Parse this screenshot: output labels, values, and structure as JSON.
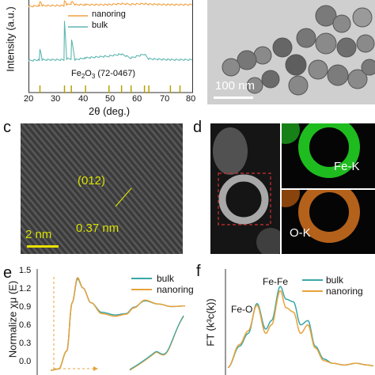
{
  "figure": {
    "panel_a": {
      "ylabel": "Intensity (a.u.)",
      "xlabel": "2θ (deg.)",
      "xticks": [
        "20",
        "30",
        "40",
        "50",
        "60",
        "70",
        "80"
      ],
      "legend": [
        "nanoring",
        "bulk"
      ],
      "reference": "Fe",
      "reference_sub": "2",
      "reference_O": "O",
      "reference_sub2": "3",
      "reference_code": "(72-0467)",
      "colors": {
        "nanoring": "#f0a040",
        "bulk": "#5db6b0",
        "reference": "#b8a000"
      }
    },
    "panel_b": {
      "scalebar": "100 nm"
    },
    "panel_c": {
      "letter": "c",
      "plane": "(012)",
      "spacing": "0.37 nm",
      "scalebar": "2 nm"
    },
    "panel_d": {
      "letter": "d",
      "map1": "Fe-K",
      "map2": "O-K"
    },
    "panel_e": {
      "letter": "e",
      "ylabel": "Normalize χμ (E)",
      "yticks": [
        "1.5",
        "1.2",
        "0.9",
        "0.6",
        "0.3",
        "0.0"
      ],
      "legend": [
        "bulk",
        "nanoring"
      ],
      "colors": {
        "bulk": "#3aa7a7",
        "nanoring": "#e8a23a"
      }
    },
    "panel_f": {
      "letter": "f",
      "ylabel": "FT (k³c(k))",
      "legend": [
        "bulk",
        "nanoring"
      ],
      "peak1": "Fe-O",
      "peak2": "Fe-Fe",
      "colors": {
        "bulk": "#3aa7a7",
        "nanoring": "#e8a23a"
      }
    }
  },
  "chart_data": [
    {
      "type": "line",
      "panel": "a",
      "xlabel": "2θ (deg.)",
      "ylabel": "Intensity (a.u.)",
      "xlim": [
        20,
        80
      ],
      "series": [
        {
          "name": "nanoring",
          "x": [
            20,
            24,
            24.2,
            25,
            33,
            33.2,
            34,
            35.6,
            35.8,
            37,
            41,
            49,
            54,
            57.6,
            62.5,
            64,
            72,
            80
          ],
          "y": [
            0.93,
            0.94,
            0.99,
            0.94,
            0.94,
            1.0,
            0.95,
            0.96,
            0.985,
            0.95,
            0.95,
            0.95,
            0.96,
            0.955,
            0.96,
            0.955,
            0.95,
            0.95
          ]
        },
        {
          "name": "bulk",
          "x": [
            20,
            24,
            24.2,
            25,
            33,
            33.2,
            34,
            35.6,
            35.8,
            37,
            41,
            49.5,
            54,
            57.6,
            62.5,
            64,
            72,
            80
          ],
          "y": [
            0.35,
            0.36,
            0.48,
            0.36,
            0.36,
            0.78,
            0.37,
            0.37,
            0.58,
            0.36,
            0.38,
            0.4,
            0.42,
            0.38,
            0.42,
            0.37,
            0.36,
            0.36
          ]
        }
      ]
    },
    {
      "type": "line",
      "panel": "e",
      "ylabel": "Normalize χμ (E)",
      "ylim": [
        0.0,
        1.5
      ],
      "series": [
        {
          "name": "bulk",
          "x": [
            0,
            0.06,
            0.12,
            0.16,
            0.2,
            0.24,
            0.3,
            0.38,
            0.48,
            0.56,
            0.62,
            0.7,
            0.8,
            0.9,
            1.0
          ],
          "y": [
            0.0,
            0.02,
            0.3,
            1.05,
            1.42,
            1.28,
            1.05,
            0.9,
            0.86,
            0.88,
            0.98,
            1.08,
            1.03,
            0.99,
            1.0
          ]
        },
        {
          "name": "nanoring",
          "x": [
            0,
            0.06,
            0.12,
            0.16,
            0.2,
            0.24,
            0.3,
            0.38,
            0.48,
            0.56,
            0.62,
            0.7,
            0.8,
            0.9,
            1.0
          ],
          "y": [
            0.0,
            0.02,
            0.3,
            1.05,
            1.44,
            1.28,
            1.05,
            0.88,
            0.84,
            0.87,
            0.97,
            1.09,
            1.03,
            0.99,
            1.0
          ]
        }
      ]
    },
    {
      "type": "line",
      "panel": "f",
      "ylabel": "FT (k³c(k))",
      "series": [
        {
          "name": "bulk",
          "x": [
            0,
            0.08,
            0.14,
            0.2,
            0.26,
            0.3,
            0.36,
            0.4,
            0.45,
            0.5,
            0.55,
            0.6,
            0.66,
            0.72,
            0.8,
            0.88,
            0.96,
            1.0
          ],
          "y": [
            0.05,
            0.3,
            0.45,
            0.8,
            0.5,
            0.6,
            1.0,
            0.85,
            0.82,
            0.55,
            0.6,
            0.3,
            0.15,
            0.1,
            0.08,
            0.1,
            0.08,
            0.07
          ]
        },
        {
          "name": "nanoring",
          "x": [
            0,
            0.08,
            0.14,
            0.2,
            0.26,
            0.3,
            0.36,
            0.4,
            0.45,
            0.5,
            0.55,
            0.6,
            0.66,
            0.72,
            0.8,
            0.88,
            0.96,
            1.0
          ],
          "y": [
            0.05,
            0.32,
            0.48,
            0.78,
            0.45,
            0.55,
            0.95,
            0.75,
            0.7,
            0.45,
            0.55,
            0.28,
            0.13,
            0.1,
            0.08,
            0.1,
            0.08,
            0.07
          ]
        }
      ]
    }
  ]
}
